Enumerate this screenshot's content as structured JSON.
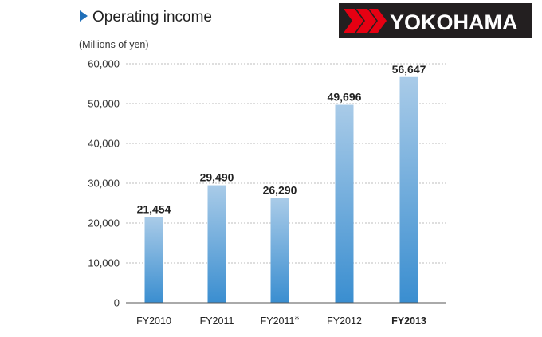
{
  "header": {
    "title": "Operating income",
    "unit": "(Millions of yen)"
  },
  "logo": {
    "text": "YOKOHAMA",
    "background_color": "#231f20",
    "mark_color": "#e60012"
  },
  "chart_data": {
    "type": "bar",
    "title": "Operating income",
    "ylabel": "(Millions of yen)",
    "xlabel": "",
    "categories": [
      "FY2010",
      "FY2011",
      "FY2011",
      "FY2012",
      "FY2013"
    ],
    "category_notes": [
      "",
      "",
      "※",
      "",
      ""
    ],
    "highlighted_category": "FY2013",
    "values": [
      21454,
      29490,
      26290,
      49696,
      56647
    ],
    "value_labels": [
      "21,454",
      "29,490",
      "26,290",
      "49,696",
      "56,647"
    ],
    "ylim": [
      0,
      60000
    ],
    "yticks": [
      0,
      10000,
      20000,
      30000,
      40000,
      50000,
      60000
    ],
    "ytick_labels": [
      "0",
      "10,000",
      "20,000",
      "30,000",
      "40,000",
      "50,000",
      "60,000"
    ],
    "grid": true,
    "legend": "none",
    "bar_color_top": "#a9cbe8",
    "bar_color_bottom": "#3a8ed0"
  }
}
